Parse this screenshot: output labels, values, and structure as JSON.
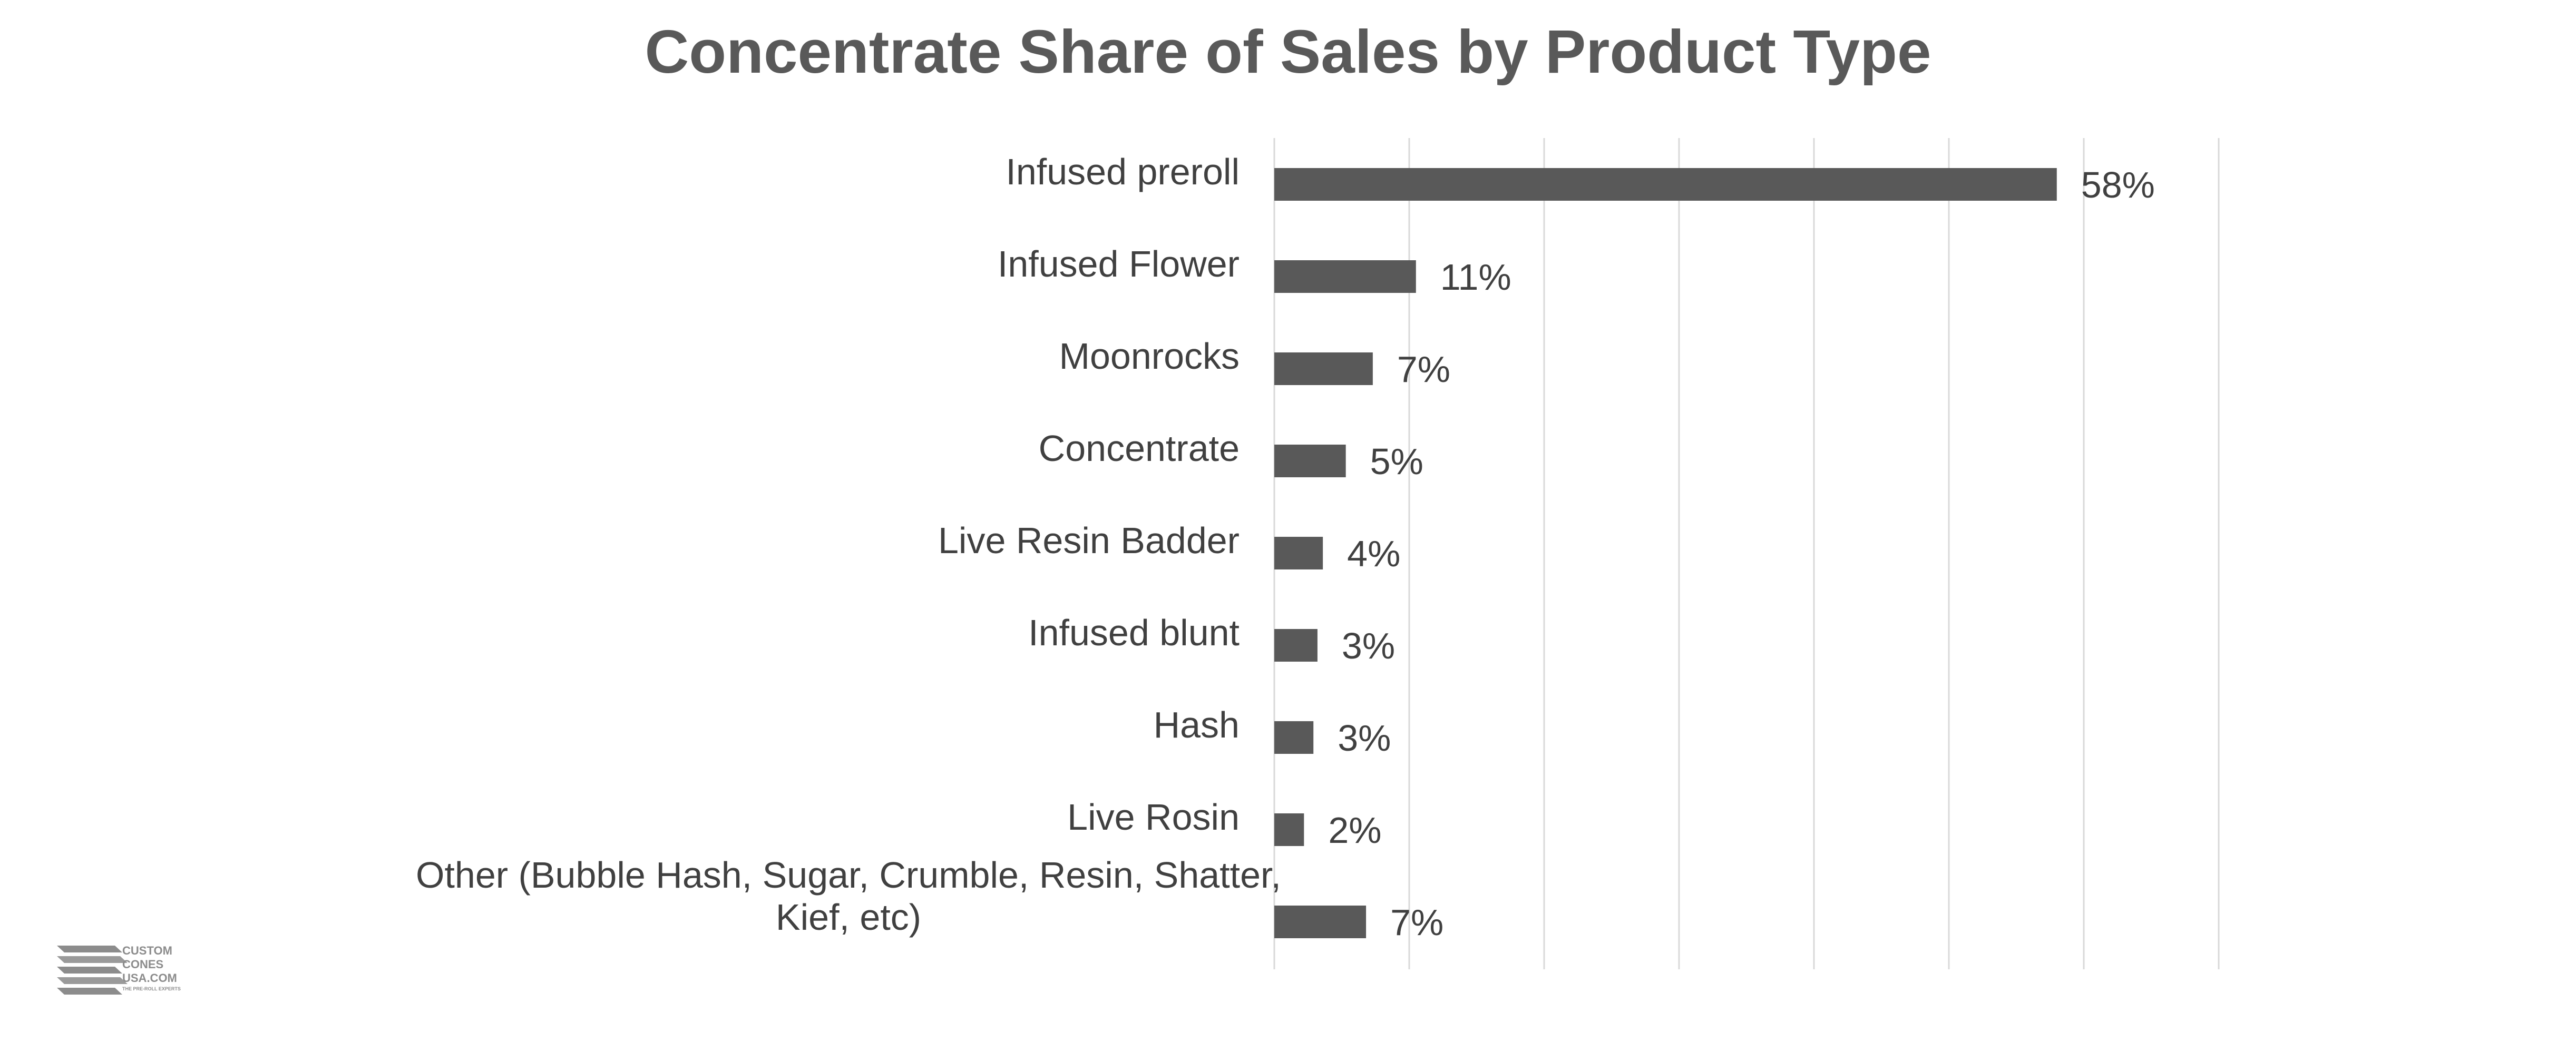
{
  "logo": {
    "line1": "CUSTOM",
    "line2": "CONES",
    "line3": "USA.COM",
    "tagline": "THE PRE-ROLL EXPERTS"
  },
  "chart_data": {
    "type": "bar",
    "orientation": "horizontal",
    "title": "Concentrate Share of Sales by Product Type",
    "xlabel": "",
    "ylabel": "",
    "xlim": [
      0,
      70
    ],
    "grid": true,
    "legend": "none",
    "bar_color": "#595959",
    "gridline_color": "#d9d9d9",
    "categories": [
      "Infused preroll",
      "Infused Flower",
      "Moonrocks",
      "Concentrate",
      "Live Resin Badder",
      "Infused blunt",
      "Hash",
      "Live Rosin",
      "Other (Bubble Hash, Sugar, Crumble, Resin, Shatter, Kief, etc)"
    ],
    "category_label_lines": [
      [
        "Infused preroll"
      ],
      [
        "Infused Flower"
      ],
      [
        "Moonrocks"
      ],
      [
        "Concentrate"
      ],
      [
        "Live Resin Badder"
      ],
      [
        "Infused blunt"
      ],
      [
        "Hash"
      ],
      [
        "Live Rosin"
      ],
      [
        "Other (Bubble Hash, Sugar, Crumble, Resin, Shatter,",
        "Kief, etc)"
      ]
    ],
    "values": [
      58,
      10.5,
      7.3,
      5.3,
      3.6,
      3.2,
      2.9,
      2.2,
      6.8
    ],
    "data_labels": [
      "58%",
      "11%",
      "7%",
      "5%",
      "4%",
      "3%",
      "3%",
      "2%",
      "7%"
    ]
  }
}
